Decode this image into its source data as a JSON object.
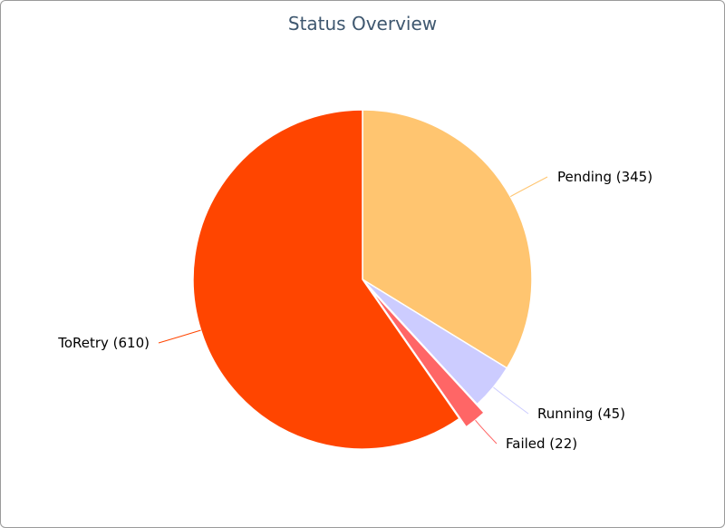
{
  "chart_data": {
    "type": "pie",
    "title": "Status Overview",
    "slices": [
      {
        "name": "Pending",
        "value": 345,
        "label": "Pending (345)",
        "color": "#ffc570",
        "sliced": false
      },
      {
        "name": "Running",
        "value": 45,
        "label": "Running (45)",
        "color": "#ccccff",
        "sliced": false
      },
      {
        "name": "Failed",
        "value": 22,
        "label": "Failed (22)",
        "color": "#ff6666",
        "sliced": true
      },
      {
        "name": "ToRetry",
        "value": 610,
        "label": "ToRetry (610)",
        "color": "#ff4500",
        "sliced": false
      }
    ],
    "start_angle": "12 o'clock",
    "direction": "clockwise",
    "legend": "none"
  }
}
